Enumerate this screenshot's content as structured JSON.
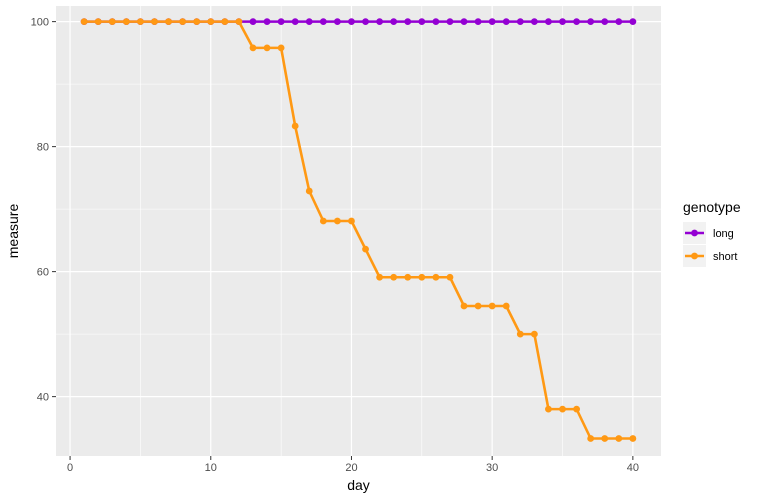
{
  "chart_data": {
    "type": "line",
    "xlabel": "day",
    "ylabel": "measure",
    "xlim": [
      -1,
      42
    ],
    "ylim": [
      30.5,
      102.5
    ],
    "x_ticks": [
      0,
      10,
      20,
      30,
      40
    ],
    "y_ticks": [
      40,
      60,
      80,
      100
    ],
    "grid": true,
    "legend_position": "right",
    "legend_title": "genotype",
    "series": [
      {
        "name": "long",
        "color": "#9400D3",
        "x": [
          1,
          2,
          3,
          4,
          5,
          6,
          7,
          8,
          9,
          10,
          11,
          12,
          13,
          14,
          15,
          16,
          17,
          18,
          19,
          20,
          21,
          22,
          23,
          24,
          25,
          26,
          27,
          28,
          29,
          30,
          31,
          32,
          33,
          34,
          35,
          36,
          37,
          38,
          39,
          40
        ],
        "y": [
          100,
          100,
          100,
          100,
          100,
          100,
          100,
          100,
          100,
          100,
          100,
          100,
          100,
          100,
          100,
          100,
          100,
          100,
          100,
          100,
          100,
          100,
          100,
          100,
          100,
          100,
          100,
          100,
          100,
          100,
          100,
          100,
          100,
          100,
          100,
          100,
          100,
          100,
          100,
          100
        ]
      },
      {
        "name": "short",
        "color": "#FF9914",
        "x": [
          1,
          2,
          3,
          4,
          5,
          6,
          7,
          8,
          9,
          10,
          11,
          12,
          13,
          14,
          15,
          16,
          17,
          18,
          19,
          20,
          21,
          22,
          23,
          24,
          25,
          26,
          27,
          28,
          29,
          30,
          31,
          32,
          33,
          34,
          35,
          36,
          37,
          38,
          39,
          40
        ],
        "y": [
          100,
          100,
          100,
          100,
          100,
          100,
          100,
          100,
          100,
          100,
          100,
          100,
          95.8,
          95.8,
          95.8,
          83.3,
          72.9,
          68.1,
          68.1,
          68.1,
          63.6,
          59.1,
          59.1,
          59.1,
          59.1,
          59.1,
          59.1,
          54.5,
          54.5,
          54.5,
          54.5,
          50.0,
          50.0,
          38.0,
          38.0,
          38.0,
          33.3,
          33.3,
          33.3,
          33.3
        ]
      }
    ]
  }
}
